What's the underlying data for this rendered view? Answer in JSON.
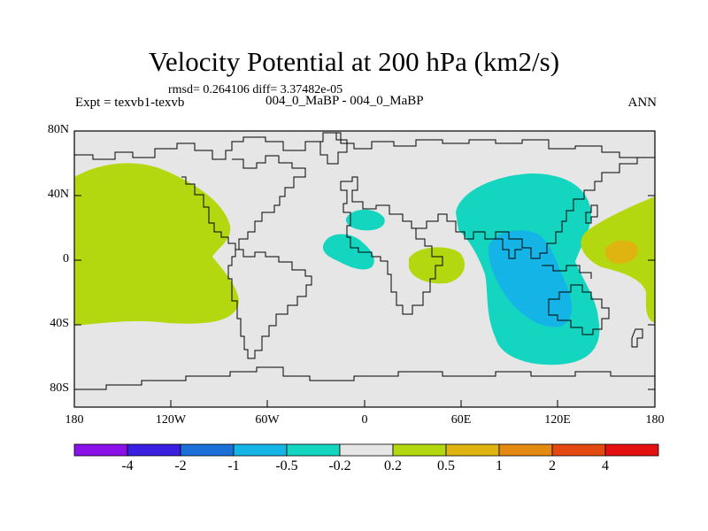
{
  "title": "Velocity Potential at 200 hPa (km2/s)",
  "stats": "rmsd= 0.264106 diff= 3.37482e-05",
  "experiment": "Expt = texvb1-texvb",
  "case_label": "004_0_MaBP - 004_0_MaBP",
  "season": "ANN",
  "y_axis_ticks": [
    "80N",
    "40N",
    "0",
    "40S",
    "80S"
  ],
  "x_axis_ticks": [
    "180",
    "120W",
    "60W",
    "0",
    "60E",
    "120E",
    "180"
  ],
  "colorbar": {
    "labels": [
      "-4",
      "-2",
      "-1",
      "-0.5",
      "-0.2",
      "0.2",
      "0.5",
      "1",
      "2",
      "4"
    ],
    "colors": [
      "#8a12e8",
      "#3a1fe0",
      "#1a70d8",
      "#14b4e6",
      "#14d6c0",
      "#e6e6e6",
      "#b4d810",
      "#e0b410",
      "#e48a10",
      "#e44a10",
      "#e41010"
    ]
  },
  "colors": {
    "land_fill": "#e6e6e6",
    "positive_weak": "#b4d810",
    "positive_mid": "#e0b410",
    "negative_weak": "#14d6c0",
    "negative_mid": "#14b4e6"
  }
}
